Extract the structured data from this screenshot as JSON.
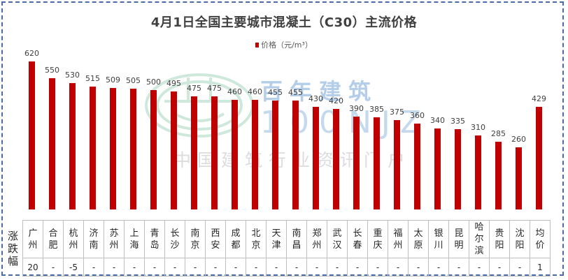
{
  "chart_data": {
    "type": "bar",
    "title": "4月1日全国主要城市混凝土（C30）主流价格",
    "legend": [
      "价格（元/m³）"
    ],
    "legend_position": "top",
    "xlabel": "",
    "ylabel": "",
    "grid": false,
    "bar_color": "#c00000",
    "ylim": [
      0,
      700
    ],
    "categories": [
      "广州",
      "合肥",
      "杭州",
      "济南",
      "苏州",
      "上海",
      "青岛",
      "长沙",
      "南京",
      "西安",
      "成都",
      "北京",
      "天津",
      "南昌",
      "郑州",
      "武汉",
      "长春",
      "重庆",
      "福州",
      "太原",
      "银川",
      "昆明",
      "哈尔滨",
      "贵阳",
      "沈阳",
      "均价"
    ],
    "series": [
      {
        "name": "价格（元/m³）",
        "values": [
          620,
          550,
          530,
          515,
          509,
          505,
          500,
          495,
          475,
          475,
          460,
          460,
          455,
          455,
          430,
          420,
          390,
          385,
          375,
          360,
          340,
          335,
          310,
          285,
          260,
          429
        ]
      }
    ],
    "table": {
      "row_label": "涨跌幅",
      "changes": [
        "20",
        "-",
        "-5",
        "-",
        "-",
        "-",
        "-",
        "-",
        "-",
        "-",
        "-",
        "-",
        "-",
        "-",
        "-",
        "-",
        "-",
        "-",
        "-",
        "-",
        "-",
        "-",
        "-",
        "-",
        "-",
        "1"
      ]
    }
  },
  "header": {
    "title": "4月1日全国主要城市混凝土（C30）主流价格",
    "legend_label": "价格（元/m³）"
  },
  "watermark": {
    "brand_cn": "百年建筑",
    "brand_en": "100NJZ",
    "slogan": "中国建筑行业资讯门户"
  },
  "table": {
    "row_label": "涨跌幅",
    "cities": [
      "广\n州",
      "合\n肥",
      "杭\n州",
      "济\n南",
      "苏\n州",
      "上\n海",
      "青\n岛",
      "长\n沙",
      "南\n京",
      "西\n安",
      "成\n都",
      "北\n京",
      "天\n津",
      "南\n昌",
      "郑\n州",
      "武\n汉",
      "长\n春",
      "重\n庆",
      "福\n州",
      "太\n原",
      "银\n川",
      "昆\n明",
      "哈\n尔\n滨",
      "贵\n阳",
      "沈\n阳",
      "均\n价"
    ],
    "changes": [
      "20",
      "-",
      "-5",
      "-",
      "-",
      "-",
      "-",
      "-",
      "-",
      "-",
      "-",
      "-",
      "-",
      "-",
      "-",
      "-",
      "-",
      "-",
      "-",
      "-",
      "-",
      "-",
      "-",
      "-",
      "-",
      "1"
    ],
    "change_styles": [
      "up",
      "flat",
      "down",
      "flat",
      "flat",
      "flat",
      "flat",
      "flat",
      "flat",
      "flat",
      "flat",
      "flat",
      "flat",
      "flat",
      "flat-g",
      "flat",
      "flat",
      "flat",
      "flat",
      "flat",
      "flat",
      "flat",
      "flat",
      "flat",
      "flat",
      "up"
    ]
  }
}
